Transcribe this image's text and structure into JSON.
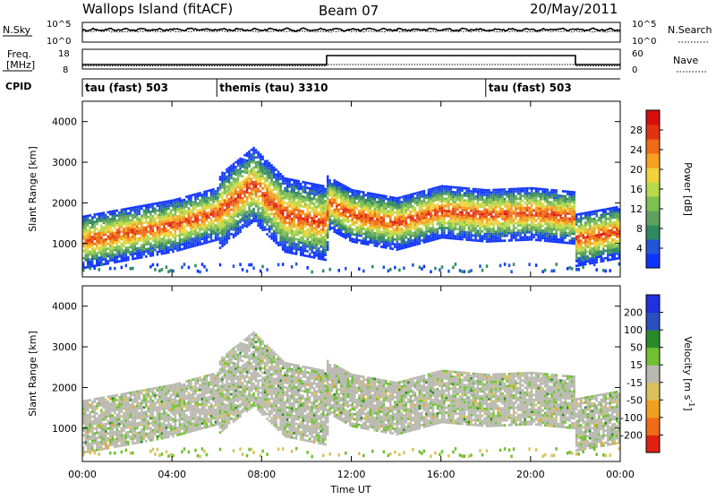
{
  "header": {
    "station": "Wallops Island (fitACF)",
    "beam": "Beam 07",
    "date": "20/May/2011"
  },
  "panel_labels": {
    "nsky": "N.Sky",
    "nsearch": "N.Search",
    "freq_line1": "Freq.",
    "freq_line2": "[MHz]",
    "nave": "Nave",
    "cpid": "CPID"
  },
  "noise_axis": {
    "ticks_left": [
      "10^5",
      "10^0"
    ],
    "ticks_right": [
      "10^5",
      "10^0"
    ]
  },
  "freq_axis": {
    "ticks_left": [
      "18",
      "8"
    ],
    "ticks_right": [
      "60",
      "0"
    ]
  },
  "cpid_segments": [
    {
      "label": "tau (fast) 503",
      "start_h": 0
    },
    {
      "label": "themis (tau) 3310",
      "start_h": 6
    },
    {
      "label": "tau (fast) 503",
      "start_h": 18
    }
  ],
  "colors": {
    "power": [
      "#1034ff",
      "#2255d8",
      "#2f8a5f",
      "#5fa15f",
      "#7ec050",
      "#b8d94a",
      "#f0d23a",
      "#f5a020",
      "#ef6a16",
      "#e33212",
      "#d70e0e"
    ],
    "velocity": [
      "#2130e0",
      "#2a4fc0",
      "#2a8a2a",
      "#70c030",
      "#b8b8b0",
      "#d9c25a",
      "#f0a020",
      "#f06a18",
      "#e02010"
    ]
  },
  "chart_data": [
    {
      "type": "heatmap",
      "title": "",
      "ylabel": "Slant Range [km]",
      "xlabel": "",
      "x_range_h": [
        0,
        24
      ],
      "ylim": [
        180,
        4500
      ],
      "yticks": [
        1000,
        2000,
        3000,
        4000
      ],
      "colorbar": {
        "label": "Power [dB]",
        "ticks": [
          "4",
          "8",
          "12",
          "16",
          "20",
          "24",
          "28"
        ],
        "range": [
          0,
          30
        ]
      },
      "echo_band_center_km": [
        {
          "h": 0,
          "km": 1050
        },
        {
          "h": 2,
          "km": 1250
        },
        {
          "h": 4,
          "km": 1450
        },
        {
          "h": 6,
          "km": 1750
        },
        {
          "h": 7.6,
          "km": 2450
        },
        {
          "h": 9,
          "km": 1700
        },
        {
          "h": 10.8,
          "km": 1500
        },
        {
          "h": 11,
          "km": 2000
        },
        {
          "h": 12,
          "km": 1700
        },
        {
          "h": 14,
          "km": 1500
        },
        {
          "h": 16,
          "km": 1800
        },
        {
          "h": 18,
          "km": 1700
        },
        {
          "h": 20,
          "km": 1750
        },
        {
          "h": 21.9,
          "km": 1650
        },
        {
          "h": 22,
          "km": 1100
        },
        {
          "h": 24,
          "km": 1300
        }
      ]
    },
    {
      "type": "heatmap",
      "title": "",
      "ylabel": "Slant Range [km]",
      "xlabel": "Time UT",
      "x_range_h": [
        0,
        24
      ],
      "ylim": [
        180,
        4500
      ],
      "yticks": [
        1000,
        2000,
        3000,
        4000
      ],
      "xticks": [
        "00:00",
        "04:00",
        "08:00",
        "12:00",
        "16:00",
        "20:00",
        "00:00"
      ],
      "colorbar": {
        "label_main": "Velocity [m s",
        "label_sup": "-1",
        "label_end": "]",
        "ticks": [
          "200",
          "100",
          "50",
          "15",
          "-15",
          "-50",
          "-100",
          "-200"
        ]
      }
    }
  ]
}
